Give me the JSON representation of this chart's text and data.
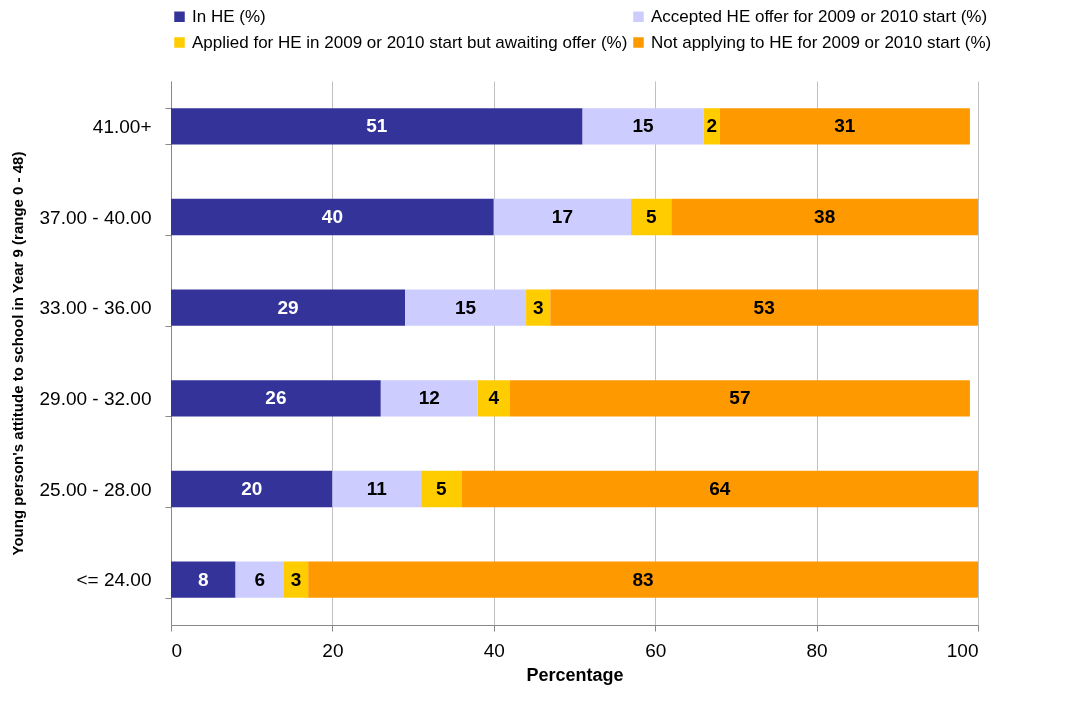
{
  "chart_data": {
    "type": "bar",
    "orientation": "horizontal",
    "stacked": true,
    "data_labels": true,
    "grid": "x",
    "legend": "top",
    "xlabel": "Percentage",
    "ylabel": "Young person's attitude to school in Year 9 (range 0 - 48)",
    "categories": [
      "41.00+",
      "37.00 - 40.00",
      "33.00 - 36.00",
      "29.00 - 32.00",
      "25.00 - 28.00",
      "<= 24.00"
    ],
    "xlim": [
      0,
      100
    ],
    "xticks": [
      0,
      20,
      40,
      60,
      80,
      100
    ],
    "series": [
      {
        "name": "In HE (%)",
        "color": "#333399",
        "values": [
          51,
          40,
          29,
          26,
          20,
          8
        ]
      },
      {
        "name": "Accepted HE offer for 2009 or 2010 start (%)",
        "color": "#ccccff",
        "values": [
          15,
          17,
          15,
          12,
          11,
          6
        ]
      },
      {
        "name": "Applied for HE in 2009 or 2010 start but awaiting offer (%)",
        "color": "#ffcc00",
        "values": [
          2,
          5,
          3,
          4,
          5,
          3
        ]
      },
      {
        "name": "Not applying to HE for 2009 or 2010 start (%)",
        "color": "#ff9900",
        "values": [
          31,
          38,
          53,
          57,
          64,
          83
        ]
      }
    ]
  }
}
